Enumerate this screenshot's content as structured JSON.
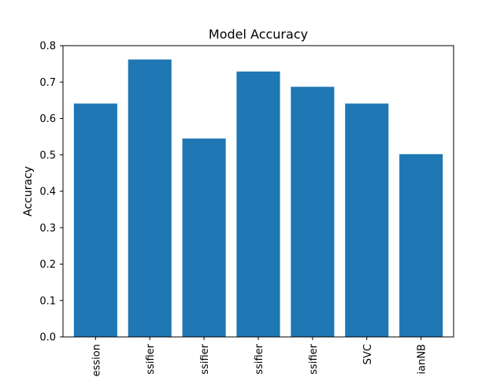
{
  "chart_data": {
    "type": "bar",
    "title": "Model Accuracy",
    "xlabel": "",
    "ylabel": "Accuracy",
    "categories": [
      "ession",
      "ssifier",
      "ssifier",
      "ssifier",
      "ssifier",
      "SVC",
      "ianNB"
    ],
    "values": [
      0.641,
      0.762,
      0.545,
      0.729,
      0.687,
      0.641,
      0.502
    ],
    "ylim": [
      0,
      0.8
    ],
    "yticks": [
      "0.0",
      "0.1",
      "0.2",
      "0.3",
      "0.4",
      "0.5",
      "0.6",
      "0.7",
      "0.8"
    ],
    "grid": false,
    "bar_color": "#1f77b4"
  }
}
